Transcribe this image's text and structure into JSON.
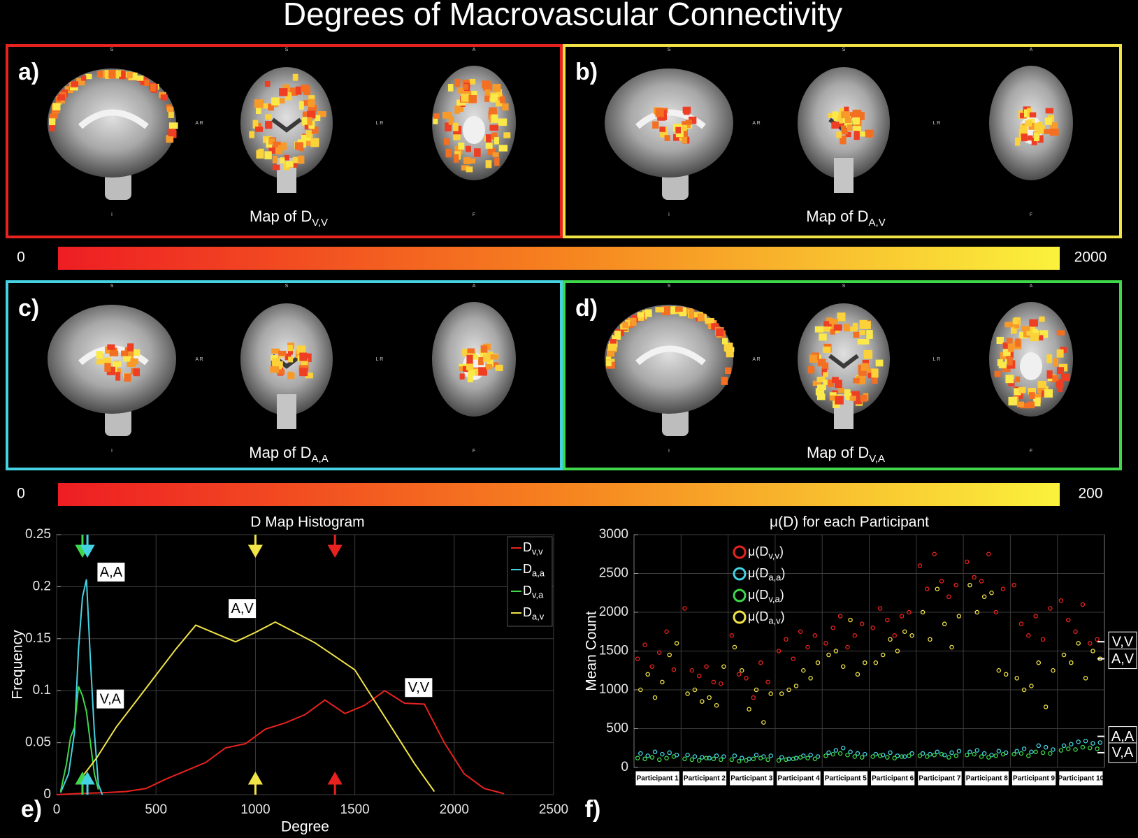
{
  "title": "Degrees of Macrovascular Connectivity",
  "panels": [
    {
      "label": "a)",
      "caption": "Map of D",
      "caption_sub": "V,V",
      "frame_color": "#e8231f",
      "style": "rim",
      "orientation": {
        "top": [
          "S",
          "S",
          "A"
        ],
        "middle": [
          "A R",
          "L R"
        ],
        "bottom": [
          "I",
          "F"
        ]
      }
    },
    {
      "label": "b)",
      "caption": "Map of D",
      "caption_sub": "A,V",
      "frame_color": "#f2e447",
      "style": "central",
      "orientation": {
        "top": [
          "S",
          "S",
          "A"
        ],
        "middle": [
          "A R",
          "L R"
        ],
        "bottom": [
          "I",
          "F"
        ]
      }
    },
    {
      "label": "c)",
      "caption": "Map of D",
      "caption_sub": "A,A",
      "frame_color": "#45d3e3",
      "style": "central",
      "orientation": {
        "top": [
          "S",
          "S",
          "A"
        ],
        "middle": [
          "A R",
          "L R"
        ],
        "bottom": [
          "I",
          "F"
        ]
      }
    },
    {
      "label": "d)",
      "caption": "Map of D",
      "caption_sub": "V,A",
      "frame_color": "#3fd84a",
      "style": "rim",
      "orientation": {
        "top": [
          "S",
          "S",
          "A"
        ],
        "middle": [
          "A R",
          "L R"
        ],
        "bottom": [
          "I",
          "F"
        ]
      }
    }
  ],
  "colorbars": [
    {
      "min_label": "0",
      "max_label": "2000",
      "colormap": [
        "#ee1d23",
        "#f6821f",
        "#fbf23c"
      ]
    },
    {
      "min_label": "0",
      "max_label": "200",
      "colormap": [
        "#ee1d23",
        "#f6821f",
        "#fbf23c"
      ]
    }
  ],
  "chart_data": [
    {
      "type": "line",
      "panel_label": "e)",
      "title": "D Map Histogram",
      "x_label": "Degree",
      "y_label": "Frequency",
      "xlim": [
        0,
        2500
      ],
      "xticks": [
        0,
        500,
        1000,
        1500,
        2000,
        2500
      ],
      "ylim": [
        0,
        0.25
      ],
      "yticks": [
        0,
        0.05,
        0.1,
        0.15,
        0.2,
        0.25
      ],
      "grid": true,
      "legend": "upper right",
      "series": [
        {
          "name": "Dv,v",
          "color": "#e8231f",
          "x": [
            0,
            100,
            250,
            350,
            450,
            550,
            650,
            750,
            850,
            950,
            1050,
            1150,
            1250,
            1350,
            1450,
            1550,
            1650,
            1750,
            1850,
            1950,
            2050,
            2150,
            2250
          ],
          "values": [
            0,
            0.001,
            0.002,
            0.003,
            0.006,
            0.015,
            0.023,
            0.031,
            0.045,
            0.049,
            0.063,
            0.069,
            0.077,
            0.091,
            0.078,
            0.086,
            0.1,
            0.088,
            0.087,
            0.05,
            0.02,
            0.006,
            0.001
          ]
        },
        {
          "name": "Da,a",
          "color": "#45d3e3",
          "x": [
            20,
            60,
            90,
            110,
            130,
            150,
            170,
            190,
            210,
            230
          ],
          "values": [
            0.002,
            0.02,
            0.06,
            0.14,
            0.19,
            0.207,
            0.13,
            0.06,
            0.01,
            0
          ]
        },
        {
          "name": "Dv,a",
          "color": "#3fd84a",
          "x": [
            20,
            50,
            70,
            90,
            110,
            130,
            150,
            170,
            190,
            210
          ],
          "values": [
            0.003,
            0.03,
            0.055,
            0.065,
            0.104,
            0.095,
            0.08,
            0.05,
            0.02,
            0.005
          ]
        },
        {
          "name": "Da,v",
          "color": "#f2e447",
          "x": [
            100,
            200,
            300,
            400,
            500,
            600,
            700,
            800,
            900,
            1000,
            1100,
            1200,
            1300,
            1400,
            1500,
            1600,
            1700,
            1800,
            1900
          ],
          "values": [
            0.01,
            0.035,
            0.065,
            0.09,
            0.115,
            0.14,
            0.163,
            0.155,
            0.147,
            0.156,
            0.166,
            0.156,
            0.146,
            0.133,
            0.12,
            0.09,
            0.06,
            0.03,
            0.003
          ]
        }
      ],
      "mean_markers": [
        {
          "x": 130,
          "color": "#3fd84a"
        },
        {
          "x": 155,
          "color": "#45d3e3"
        },
        {
          "x": 1000,
          "color": "#f2e447"
        },
        {
          "x": 1400,
          "color": "#e8231f"
        }
      ],
      "annotations": [
        {
          "text": "A,A",
          "x": 274,
          "y": 0.214
        },
        {
          "text": "A,V",
          "x": 934,
          "y": 0.179
        },
        {
          "text": "V,A",
          "x": 270,
          "y": 0.092
        },
        {
          "text": "V,V",
          "x": 1821,
          "y": 0.103
        }
      ]
    },
    {
      "type": "scatter",
      "panel_label": "f)",
      "title": "μ(D) for each Participant",
      "y_label": "Mean Count",
      "ylim": [
        0,
        3000
      ],
      "yticks": [
        0,
        500,
        1000,
        1500,
        2000,
        2500,
        3000
      ],
      "grid": true,
      "legend": "upper left",
      "categories": [
        "Participant 1",
        "Participant 2",
        "Participant 3",
        "Participant 4",
        "Participant 5",
        "Participant 6",
        "Participant 7",
        "Participant 8",
        "Participant 9",
        "Participant 10"
      ],
      "series": [
        {
          "name": "μ(Dv,v)",
          "color": "#e8231f",
          "values": [
            [
              1400,
              1580,
              1300,
              1480,
              1750,
              1260
            ],
            [
              2050,
              1250,
              1180,
              1300,
              1100,
              1080
            ],
            [
              1700,
              1200,
              1150,
              900,
              1350,
              1100
            ],
            [
              1500,
              1650,
              1400,
              1750,
              1550,
              1700
            ],
            [
              1600,
              1800,
              1950,
              1550,
              1700,
              1850
            ],
            [
              1800,
              2050,
              1900,
              1700,
              1950,
              2000
            ],
            [
              2600,
              2300,
              2750,
              2400,
              2200,
              2350
            ],
            [
              2650,
              2450,
              2400,
              2750,
              2000,
              2300
            ],
            [
              2350,
              1850,
              1700,
              1950,
              1650,
              2050
            ],
            [
              2150,
              1900,
              1750,
              2100,
              1600,
              1650
            ]
          ]
        },
        {
          "name": "μ(Da,a)",
          "color": "#45d3e3",
          "values": [
            [
              180,
              150,
              200,
              170,
              190,
              160
            ],
            [
              160,
              140,
              130,
              120,
              150,
              140
            ],
            [
              150,
              120,
              110,
              160,
              140,
              150
            ],
            [
              130,
              110,
              120,
              150,
              160,
              140
            ],
            [
              190,
              220,
              250,
              200,
              180,
              170
            ],
            [
              170,
              160,
              190,
              150,
              140,
              180
            ],
            [
              180,
              170,
              200,
              160,
              190,
              210
            ],
            [
              200,
              220,
              180,
              160,
              210,
              190
            ],
            [
              210,
              240,
              200,
              280,
              260,
              230
            ],
            [
              280,
              300,
              330,
              340,
              310,
              320
            ]
          ]
        },
        {
          "name": "μ(Dv,a)",
          "color": "#3fd84a",
          "values": [
            [
              120,
              110,
              130,
              100,
              120,
              140
            ],
            [
              110,
              100,
              90,
              120,
              110,
              100
            ],
            [
              100,
              80,
              90,
              110,
              120,
              100
            ],
            [
              90,
              100,
              110,
              130,
              120,
              110
            ],
            [
              150,
              170,
              180,
              160,
              140,
              130
            ],
            [
              140,
              150,
              130,
              120,
              140,
              150
            ],
            [
              150,
              140,
              160,
              170,
              130,
              150
            ],
            [
              160,
              170,
              140,
              130,
              150,
              170
            ],
            [
              170,
              180,
              150,
              200,
              190,
              180
            ],
            [
              220,
              240,
              230,
              260,
              250,
              240
            ]
          ]
        },
        {
          "name": "μ(Da,v)",
          "color": "#f2e447",
          "values": [
            [
              1000,
              1200,
              900,
              1100,
              1450,
              1600
            ],
            [
              950,
              1000,
              850,
              900,
              800,
              1300
            ],
            [
              1550,
              1250,
              750,
              1000,
              580,
              950
            ],
            [
              950,
              1000,
              1050,
              1250,
              1150,
              1350
            ],
            [
              1450,
              1500,
              1300,
              1900,
              1200,
              1350
            ],
            [
              1350,
              1450,
              1650,
              1500,
              1750,
              1700
            ],
            [
              2000,
              1650,
              2300,
              1850,
              1550,
              1950
            ],
            [
              2350,
              2000,
              2200,
              2250,
              1250,
              1200
            ],
            [
              1150,
              1000,
              1050,
              1350,
              780,
              1250
            ],
            [
              1450,
              1350,
              1600,
              1150,
              1500,
              1400
            ]
          ]
        }
      ],
      "mean_labels": [
        {
          "text": "V,V",
          "value": 1620
        },
        {
          "text": "A,V",
          "value": 1400
        },
        {
          "text": "A,A",
          "value": 400
        },
        {
          "text": "V,A",
          "value": 190
        }
      ]
    }
  ]
}
